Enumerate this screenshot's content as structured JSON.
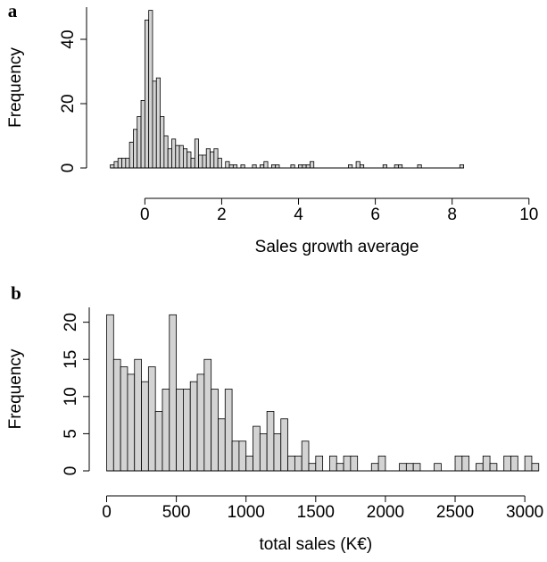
{
  "chart_data": [
    {
      "type": "histogram",
      "label": "a",
      "xlabel": "Sales growth average",
      "ylabel": "Frequency",
      "bins": [
        -0.9,
        -0.8,
        -0.7,
        -0.6,
        -0.5,
        -0.4,
        -0.3,
        -0.2,
        -0.1,
        0.0,
        0.1,
        0.2,
        0.3,
        0.4,
        0.5,
        0.6,
        0.7,
        0.8,
        0.9,
        1.0,
        1.1,
        1.2,
        1.3,
        1.4,
        1.5,
        1.6,
        1.7,
        1.8,
        1.9,
        2.0,
        2.1,
        2.2,
        2.3,
        2.4,
        2.5,
        2.6,
        2.7,
        2.8,
        2.9,
        3.0,
        3.1,
        3.2,
        3.3,
        3.4,
        3.5,
        3.6,
        3.7,
        3.8,
        3.9,
        4.0,
        4.1,
        4.2,
        4.3,
        4.4,
        4.5,
        4.6,
        4.7,
        4.8,
        4.9,
        5.0,
        5.1,
        5.2,
        5.3,
        5.4,
        5.5,
        5.6,
        5.7,
        5.8,
        5.9,
        6.0,
        6.1,
        6.2,
        6.3,
        6.4,
        6.5,
        6.6,
        6.7,
        6.8,
        6.9,
        7.0,
        7.1,
        7.2,
        7.3,
        7.4,
        7.5,
        7.6,
        7.7,
        7.8,
        7.9,
        8.0,
        8.1,
        8.2,
        8.3
      ],
      "values": [
        1,
        2,
        3,
        3,
        3,
        8,
        12,
        16,
        21,
        46,
        49,
        27,
        28,
        16,
        10,
        6,
        9,
        7,
        7,
        6,
        5,
        3,
        9,
        4,
        4,
        6,
        5,
        6,
        3,
        0,
        2,
        1,
        1,
        0,
        1,
        0,
        0,
        1,
        0,
        1,
        2,
        0,
        1,
        1,
        0,
        0,
        0,
        1,
        0,
        1,
        1,
        1,
        2,
        0,
        0,
        0,
        0,
        0,
        0,
        0,
        0,
        0,
        1,
        0,
        2,
        1,
        0,
        0,
        0,
        0,
        0,
        1,
        0,
        0,
        1,
        1,
        0,
        0,
        0,
        0,
        1,
        0,
        0,
        0,
        0,
        0,
        0,
        0,
        0,
        0,
        0,
        1
      ],
      "color": "#d3d3d3",
      "xlim": [
        -1.1,
        10.4
      ],
      "xticks": [
        0,
        2,
        4,
        6,
        8,
        10
      ],
      "ylim": [
        0,
        50
      ],
      "yticks": [
        0,
        20,
        40
      ]
    },
    {
      "type": "histogram",
      "label": "b",
      "xlabel": "total sales (K€)",
      "ylabel": "Frequency",
      "bins": [
        0,
        50,
        100,
        150,
        200,
        250,
        300,
        350,
        400,
        450,
        500,
        550,
        600,
        650,
        700,
        750,
        800,
        850,
        900,
        950,
        1000,
        1050,
        1100,
        1150,
        1200,
        1250,
        1300,
        1350,
        1400,
        1450,
        1500,
        1550,
        1600,
        1650,
        1700,
        1750,
        1800,
        1850,
        1900,
        1950,
        2000,
        2050,
        2100,
        2150,
        2200,
        2250,
        2300,
        2350,
        2400,
        2450,
        2500,
        2550,
        2600,
        2650,
        2700,
        2750,
        2800,
        2850,
        2900,
        2950,
        3000,
        3050,
        3100
      ],
      "values": [
        21,
        15,
        14,
        13,
        15,
        12,
        14,
        8,
        11,
        21,
        11,
        11,
        12,
        13,
        15,
        11,
        7,
        11,
        4,
        4,
        2,
        6,
        5,
        8,
        5,
        7,
        2,
        2,
        4,
        1,
        2,
        0,
        2,
        1,
        2,
        2,
        0,
        0,
        1,
        2,
        0,
        0,
        1,
        1,
        1,
        0,
        0,
        1,
        0,
        0,
        2,
        2,
        0,
        1,
        2,
        1,
        0,
        2,
        2,
        0,
        2,
        1
      ],
      "color": "#d3d3d3",
      "xlim": [
        -80,
        3140
      ],
      "xticks": [
        0,
        500,
        1000,
        1500,
        2000,
        2500,
        3000
      ],
      "ylim": [
        0,
        22
      ],
      "yticks": [
        0,
        5,
        10,
        15,
        20
      ]
    }
  ]
}
